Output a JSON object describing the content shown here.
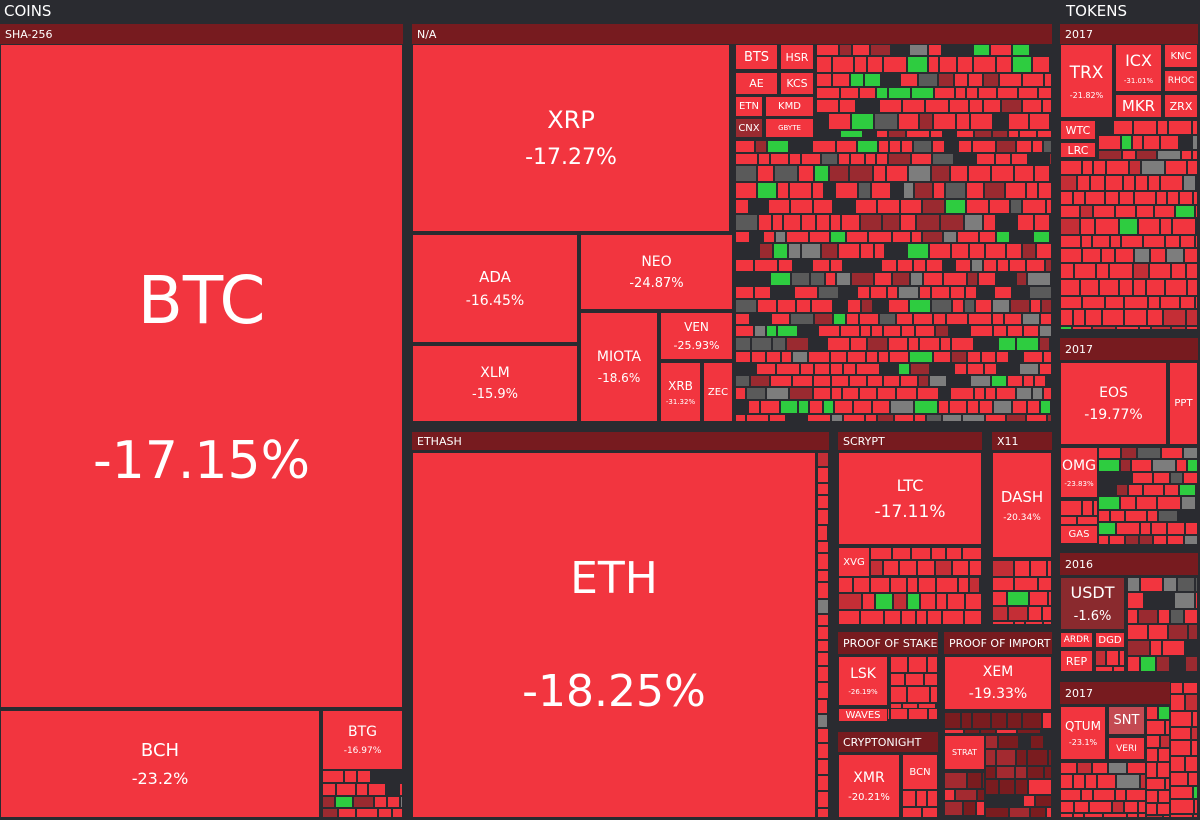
{
  "sections": {
    "coins": "COINS",
    "tokens": "TOKENS"
  },
  "groups": [
    {
      "label": "SHA-256",
      "tiles": [
        {
          "name": "BTC",
          "change": "-17.15%"
        },
        {
          "name": "BCH",
          "change": "-23.2%"
        },
        {
          "name": "BTG",
          "change": "-16.97%"
        }
      ]
    },
    {
      "label": "N/A",
      "tiles": [
        {
          "name": "XRP",
          "change": "-17.27%"
        },
        {
          "name": "ADA",
          "change": "-16.45%"
        },
        {
          "name": "XLM",
          "change": "-15.9%"
        },
        {
          "name": "NEO",
          "change": "-24.87%"
        },
        {
          "name": "MIOTA",
          "change": "-18.6%"
        },
        {
          "name": "VEN",
          "change": "-25.93%"
        },
        {
          "name": "XRB",
          "change": "-31.32%"
        },
        {
          "name": "ZEC"
        },
        {
          "name": "BTS"
        },
        {
          "name": "HSR"
        },
        {
          "name": "AE"
        },
        {
          "name": "KCS"
        },
        {
          "name": "ETN"
        },
        {
          "name": "KMD"
        },
        {
          "name": "CNX"
        },
        {
          "name": "GBYTE"
        }
      ]
    },
    {
      "label": "ETHASH",
      "tiles": [
        {
          "name": "ETH",
          "change": "-18.25%"
        }
      ]
    },
    {
      "label": "SCRYPT",
      "tiles": [
        {
          "name": "LTC",
          "change": "-17.11%"
        },
        {
          "name": "XVG"
        }
      ]
    },
    {
      "label": "X11",
      "tiles": [
        {
          "name": "DASH",
          "change": "-20.34%"
        }
      ]
    },
    {
      "label": "PROOF OF STAKE",
      "tiles": [
        {
          "name": "LSK",
          "change": "-26.19%"
        },
        {
          "name": "WAVES"
        }
      ]
    },
    {
      "label": "PROOF OF IMPORT",
      "tiles": [
        {
          "name": "XEM",
          "change": "-19.33%"
        }
      ]
    },
    {
      "label": "CRYPTONIGHT",
      "tiles": [
        {
          "name": "XMR",
          "change": "-20.21%"
        },
        {
          "name": "BCN"
        }
      ]
    },
    {
      "tiles": [
        {
          "name": "STRAT"
        }
      ]
    },
    {
      "label": "2017",
      "tiles": [
        {
          "name": "TRX",
          "change": "-21.82%"
        },
        {
          "name": "ICX",
          "change": "-31.01%"
        },
        {
          "name": "KNC"
        },
        {
          "name": "RHOC"
        },
        {
          "name": "MKR"
        },
        {
          "name": "ZRX"
        },
        {
          "name": "WTC"
        },
        {
          "name": "LRC"
        }
      ]
    },
    {
      "label": "2017",
      "tiles": [
        {
          "name": "EOS",
          "change": "-19.77%"
        },
        {
          "name": "PPT"
        },
        {
          "name": "OMG",
          "change": "-23.83%"
        },
        {
          "name": "GAS"
        }
      ]
    },
    {
      "label": "2016",
      "tiles": [
        {
          "name": "USDT",
          "change": "-1.6%"
        },
        {
          "name": "ARDR"
        },
        {
          "name": "DGD"
        },
        {
          "name": "REP"
        }
      ]
    },
    {
      "label": "2017",
      "tiles": [
        {
          "name": "QTUM",
          "change": "-23.1%"
        },
        {
          "name": "SNT"
        },
        {
          "name": "VERI"
        }
      ]
    }
  ]
}
